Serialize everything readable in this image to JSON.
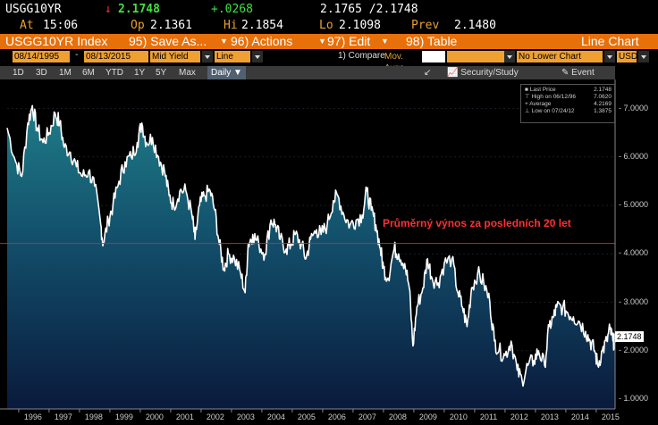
{
  "quote": {
    "ticker": "USGG10YR",
    "last": "2.1748",
    "arrow": "↓",
    "change": "+.0268",
    "bid_ask": "2.1765 /2.1748",
    "time_label": "At",
    "time": "15:06",
    "open_label": "Op",
    "open": "2.1361",
    "high_label": "Hi",
    "high": "2.1854",
    "low_label": "Lo",
    "low": "2.1098",
    "prev_label": "Prev",
    "prev": "2.1480"
  },
  "toolbar": {
    "index_label": "USGG10YR Index",
    "save_label": "95) Save As...",
    "actions_label": "96) Actions",
    "edit_label": "97) Edit",
    "table_label": "98) Table",
    "chart_label": "Line Chart"
  },
  "controls": {
    "start_date": "08/14/1995",
    "end_date": "08/13/2015",
    "field": "Mid Yield",
    "chart_type": "Line",
    "compare_label": "1) Compare",
    "compare_value": "Mov. Avgs",
    "lower_chart": "No Lower Chart",
    "currency": "USD"
  },
  "ranges": {
    "items": [
      "1D",
      "3D",
      "1M",
      "6M",
      "YTD",
      "1Y",
      "5Y",
      "Max"
    ],
    "active": "Daily",
    "security_label": "Security/Study",
    "event_label": "Event"
  },
  "legend": {
    "last_price_label": "Last Price",
    "last_price": "2.1748",
    "high_label": "High on 06/12/96",
    "high": "7.0620",
    "average_label": "Average",
    "average": "4.2169",
    "low_label": "Low on 07/24/12",
    "low": "1.3875"
  },
  "annotation": "Průměrný výnos za posledních 20 let",
  "price_tag": "2.1748",
  "colors": {
    "toolbar": "#e8700a",
    "field": "#f0a030",
    "line": "#ffffff",
    "average": "#e02020",
    "fill_top": "#1a6a78",
    "fill_bottom": "#0a1a40"
  },
  "chart_data": {
    "type": "line",
    "x_ticks": [
      "1996",
      "1997",
      "1998",
      "1999",
      "2000",
      "2001",
      "2002",
      "2003",
      "2004",
      "2005",
      "2006",
      "2007",
      "2008",
      "2009",
      "2010",
      "2011",
      "2012",
      "2013",
      "2014",
      "2015"
    ],
    "y_ticks": [
      "7.0000",
      "6.0000",
      "5.0000",
      "4.0000",
      "3.0000",
      "2.0000",
      "1.0000"
    ],
    "ylim": [
      0.8,
      7.6
    ],
    "xlim": [
      1995.62,
      2015.62
    ],
    "average": 4.2169,
    "series": [
      {
        "values": [
          [
            1995.62,
            6.6
          ],
          [
            1995.9,
            5.9
          ],
          [
            1996.1,
            5.6
          ],
          [
            1996.3,
            6.7
          ],
          [
            1996.45,
            7.06
          ],
          [
            1996.6,
            6.6
          ],
          [
            1996.8,
            6.3
          ],
          [
            1997.0,
            6.5
          ],
          [
            1997.2,
            6.9
          ],
          [
            1997.35,
            6.7
          ],
          [
            1997.5,
            6.2
          ],
          [
            1997.7,
            6.1
          ],
          [
            1997.9,
            5.8
          ],
          [
            1998.1,
            5.6
          ],
          [
            1998.3,
            5.7
          ],
          [
            1998.5,
            5.4
          ],
          [
            1998.7,
            4.6
          ],
          [
            1998.78,
            4.2
          ],
          [
            1998.95,
            4.7
          ],
          [
            1999.1,
            5.0
          ],
          [
            1999.3,
            5.5
          ],
          [
            1999.5,
            5.9
          ],
          [
            1999.7,
            6.0
          ],
          [
            1999.9,
            6.3
          ],
          [
            2000.05,
            6.7
          ],
          [
            2000.2,
            6.3
          ],
          [
            2000.4,
            6.4
          ],
          [
            2000.6,
            6.0
          ],
          [
            2000.8,
            5.7
          ],
          [
            2000.95,
            5.2
          ],
          [
            2001.1,
            5.0
          ],
          [
            2001.3,
            5.3
          ],
          [
            2001.5,
            5.3
          ],
          [
            2001.7,
            4.8
          ],
          [
            2001.8,
            4.3
          ],
          [
            2001.95,
            5.0
          ],
          [
            2002.1,
            5.2
          ],
          [
            2002.3,
            5.3
          ],
          [
            2002.45,
            4.9
          ],
          [
            2002.6,
            4.2
          ],
          [
            2002.75,
            3.7
          ],
          [
            2002.9,
            4.0
          ],
          [
            2003.1,
            3.9
          ],
          [
            2003.3,
            3.6
          ],
          [
            2003.45,
            3.2
          ],
          [
            2003.55,
            4.2
          ],
          [
            2003.7,
            4.4
          ],
          [
            2003.9,
            4.2
          ],
          [
            2004.1,
            4.0
          ],
          [
            2004.3,
            4.7
          ],
          [
            2004.45,
            4.6
          ],
          [
            2004.6,
            4.3
          ],
          [
            2004.8,
            4.1
          ],
          [
            2004.95,
            4.2
          ],
          [
            2005.1,
            4.4
          ],
          [
            2005.3,
            4.2
          ],
          [
            2005.45,
            3.9
          ],
          [
            2005.6,
            4.3
          ],
          [
            2005.8,
            4.5
          ],
          [
            2005.95,
            4.4
          ],
          [
            2006.15,
            4.6
          ],
          [
            2006.35,
            5.1
          ],
          [
            2006.5,
            5.2
          ],
          [
            2006.7,
            4.8
          ],
          [
            2006.9,
            4.6
          ],
          [
            2007.1,
            4.7
          ],
          [
            2007.3,
            4.8
          ],
          [
            2007.45,
            5.3
          ],
          [
            2007.6,
            4.9
          ],
          [
            2007.75,
            4.6
          ],
          [
            2007.9,
            4.1
          ],
          [
            2008.0,
            3.7
          ],
          [
            2008.15,
            3.5
          ],
          [
            2008.35,
            4.1
          ],
          [
            2008.5,
            4.0
          ],
          [
            2008.7,
            3.8
          ],
          [
            2008.85,
            3.3
          ],
          [
            2008.97,
            2.1
          ],
          [
            2009.1,
            2.9
          ],
          [
            2009.3,
            3.3
          ],
          [
            2009.45,
            3.9
          ],
          [
            2009.6,
            3.5
          ],
          [
            2009.8,
            3.4
          ],
          [
            2010.0,
            3.8
          ],
          [
            2010.25,
            3.9
          ],
          [
            2010.45,
            3.2
          ],
          [
            2010.6,
            2.9
          ],
          [
            2010.75,
            2.5
          ],
          [
            2010.9,
            3.3
          ],
          [
            2011.1,
            3.6
          ],
          [
            2011.3,
            3.4
          ],
          [
            2011.5,
            3.0
          ],
          [
            2011.65,
            2.2
          ],
          [
            2011.8,
            2.0
          ],
          [
            2012.0,
            1.9
          ],
          [
            2012.2,
            2.2
          ],
          [
            2012.4,
            1.6
          ],
          [
            2012.56,
            1.39
          ],
          [
            2012.75,
            1.7
          ],
          [
            2012.95,
            1.8
          ],
          [
            2013.1,
            2.0
          ],
          [
            2013.3,
            1.7
          ],
          [
            2013.45,
            2.5
          ],
          [
            2013.6,
            2.7
          ],
          [
            2013.7,
            2.9
          ],
          [
            2013.9,
            2.9
          ],
          [
            2014.05,
            2.8
          ],
          [
            2014.25,
            2.7
          ],
          [
            2014.45,
            2.6
          ],
          [
            2014.65,
            2.4
          ],
          [
            2014.8,
            2.2
          ],
          [
            2014.95,
            2.0
          ],
          [
            2015.05,
            1.7
          ],
          [
            2015.2,
            2.0
          ],
          [
            2015.35,
            2.2
          ],
          [
            2015.45,
            2.45
          ],
          [
            2015.55,
            2.2
          ],
          [
            2015.62,
            2.17
          ]
        ]
      }
    ]
  }
}
